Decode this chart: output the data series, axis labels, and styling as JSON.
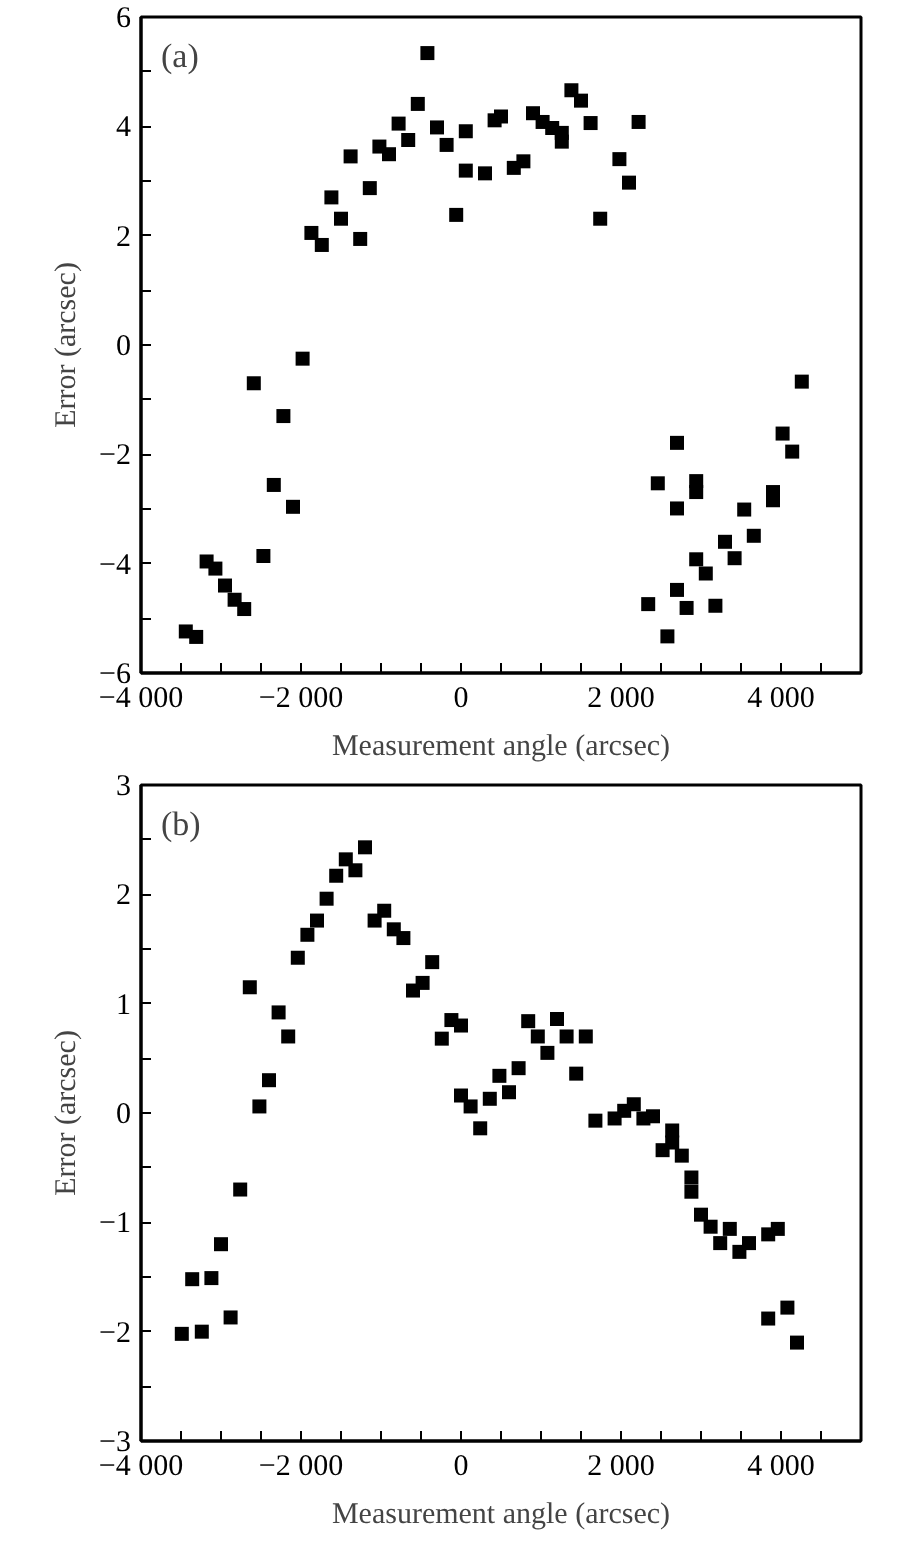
{
  "chart_data": [
    {
      "type": "scatter",
      "annotations": [
        "(a)"
      ],
      "xlabel": "Measurement angle (arcsec)",
      "ylabel": "Error (arcsec)",
      "marker": "square",
      "grid": false,
      "xlim": [
        -4000,
        5000
      ],
      "ylim": [
        -6,
        6
      ],
      "xticks": [
        {
          "value": -4000,
          "label": "−4 000"
        },
        {
          "value": -3500,
          "label": null
        },
        {
          "value": -3000,
          "label": null
        },
        {
          "value": -2500,
          "label": null
        },
        {
          "value": -2000,
          "label": "−2 000"
        },
        {
          "value": -1500,
          "label": null
        },
        {
          "value": -1000,
          "label": null
        },
        {
          "value": -500,
          "label": null
        },
        0,
        {
          "value": 500,
          "label": null
        },
        {
          "value": 1000,
          "label": null
        },
        {
          "value": 1500,
          "label": null
        },
        {
          "value": 2000,
          "label": "2 000"
        },
        {
          "value": 2500,
          "label": null
        },
        {
          "value": 3000,
          "label": null
        },
        {
          "value": 3500,
          "label": null
        },
        {
          "value": 4000,
          "label": "4 000"
        },
        {
          "value": 4500,
          "label": null
        }
      ],
      "yticks": [
        {
          "value": -6,
          "label": "−6"
        },
        {
          "value": -5,
          "label": null
        },
        {
          "value": -4,
          "label": "−4"
        },
        {
          "value": -3,
          "label": null
        },
        {
          "value": -2,
          "label": "−2"
        },
        {
          "value": -1,
          "label": null
        },
        0,
        {
          "value": 1,
          "label": null
        },
        2,
        {
          "value": 3,
          "label": null
        },
        4,
        {
          "value": 5,
          "label": null
        },
        6
      ],
      "series": [
        {
          "color": "#000000",
          "x": [
            -3440,
            -3310,
            -3180,
            -3070,
            -2950,
            -2830,
            -2710,
            -2590,
            -2470,
            -2340,
            -2220,
            -2100,
            -1980,
            -1870,
            -1740,
            -1620,
            -1500,
            -1380,
            -1260,
            -1140,
            -1020,
            -900,
            -780,
            -660,
            -540,
            -420,
            -300,
            -180,
            -60,
            60,
            60,
            300,
            420,
            500,
            660,
            780,
            900,
            1020,
            1140,
            1260,
            1260,
            1380,
            1500,
            1620,
            1740,
            1980,
            2100,
            2220,
            2340,
            2460,
            2580,
            2700,
            2700,
            2700,
            2820,
            2940,
            2940,
            2940,
            3060,
            3180,
            3300,
            3420,
            3540,
            3660,
            3900,
            3900,
            4020,
            4140,
            4260
          ],
          "values": [
            -5.24,
            -5.34,
            -3.96,
            -4.09,
            -4.4,
            -4.66,
            -4.83,
            -0.7,
            -3.86,
            -2.56,
            -1.3,
            -2.96,
            -0.25,
            2.05,
            1.83,
            2.7,
            2.31,
            3.45,
            1.94,
            2.87,
            3.63,
            3.49,
            4.05,
            3.75,
            4.41,
            5.34,
            3.98,
            3.66,
            2.38,
            3.91,
            3.19,
            3.14,
            4.11,
            4.18,
            3.24,
            3.36,
            4.24,
            4.08,
            3.97,
            3.88,
            3.72,
            4.66,
            4.47,
            4.06,
            2.31,
            3.4,
            2.97,
            4.08,
            -4.74,
            -2.53,
            -5.33,
            -1.79,
            -2.99,
            -4.48,
            -4.81,
            -2.49,
            -2.69,
            -3.92,
            -4.18,
            -4.77,
            -3.6,
            -3.9,
            -3.01,
            -3.49,
            -2.69,
            -2.84,
            -1.62,
            -1.95,
            -0.67
          ]
        }
      ]
    },
    {
      "type": "scatter",
      "annotations": [
        "(b)"
      ],
      "xlabel": "Measurement angle (arcsec)",
      "ylabel": "Error (arcsec)",
      "marker": "square",
      "grid": false,
      "xlim": [
        -4000,
        5000
      ],
      "ylim": [
        -3,
        3
      ],
      "xticks": [
        {
          "value": -4000,
          "label": "−4 000"
        },
        {
          "value": -3500,
          "label": null
        },
        {
          "value": -3000,
          "label": null
        },
        {
          "value": -2500,
          "label": null
        },
        {
          "value": -2000,
          "label": "−2 000"
        },
        {
          "value": -1500,
          "label": null
        },
        {
          "value": -1000,
          "label": null
        },
        {
          "value": -500,
          "label": null
        },
        0,
        {
          "value": 500,
          "label": null
        },
        {
          "value": 1000,
          "label": null
        },
        {
          "value": 1500,
          "label": null
        },
        {
          "value": 2000,
          "label": "2 000"
        },
        {
          "value": 2500,
          "label": null
        },
        {
          "value": 3000,
          "label": null
        },
        {
          "value": 3500,
          "label": null
        },
        {
          "value": 4000,
          "label": "4 000"
        },
        {
          "value": 4500,
          "label": null
        }
      ],
      "yticks": [
        {
          "value": -3,
          "label": "−3"
        },
        {
          "value": -2.5,
          "label": null
        },
        {
          "value": -2,
          "label": "−2"
        },
        {
          "value": -1.5,
          "label": null
        },
        {
          "value": -1,
          "label": "−1"
        },
        {
          "value": -0.5,
          "label": null
        },
        0,
        {
          "value": 0.5,
          "label": null
        },
        1,
        {
          "value": 1.5,
          "label": null
        },
        2,
        {
          "value": 2.5,
          "label": null
        },
        3
      ],
      "series": [
        {
          "color": "#000000",
          "x": [
            -3490,
            -3360,
            -3240,
            -3120,
            -3000,
            -2880,
            -2760,
            -2640,
            -2520,
            -2400,
            -2280,
            -2160,
            -2040,
            -1920,
            -1800,
            -1680,
            -1560,
            -1440,
            -1320,
            -1200,
            -1080,
            -960,
            -840,
            -720,
            -600,
            -480,
            -360,
            -240,
            -120,
            0,
            0,
            120,
            240,
            360,
            480,
            600,
            720,
            840,
            960,
            1080,
            1200,
            1320,
            1440,
            1560,
            1680,
            1920,
            2040,
            2160,
            2280,
            2400,
            2520,
            2640,
            2640,
            2760,
            2880,
            2880,
            3000,
            3120,
            3240,
            3360,
            3480,
            3600,
            3840,
            3960,
            3840,
            4080,
            4200
          ],
          "values": [
            -2.02,
            -1.52,
            -2.0,
            -1.51,
            -1.2,
            -1.87,
            -0.7,
            1.15,
            0.06,
            0.3,
            0.92,
            0.7,
            1.42,
            1.63,
            1.76,
            1.96,
            2.17,
            2.32,
            2.22,
            2.43,
            1.76,
            1.85,
            1.68,
            1.6,
            1.12,
            1.19,
            1.38,
            0.68,
            0.85,
            0.8,
            0.16,
            0.06,
            -0.14,
            0.13,
            0.34,
            0.19,
            0.41,
            0.84,
            0.7,
            0.55,
            0.86,
            0.7,
            0.36,
            0.7,
            -0.07,
            -0.05,
            0.02,
            0.08,
            -0.05,
            -0.03,
            -0.34,
            -0.16,
            -0.27,
            -0.39,
            -0.59,
            -0.72,
            -0.93,
            -1.04,
            -1.19,
            -1.06,
            -1.27,
            -1.19,
            -1.11,
            -1.06,
            -1.88,
            -1.78,
            -2.1
          ]
        }
      ]
    }
  ]
}
